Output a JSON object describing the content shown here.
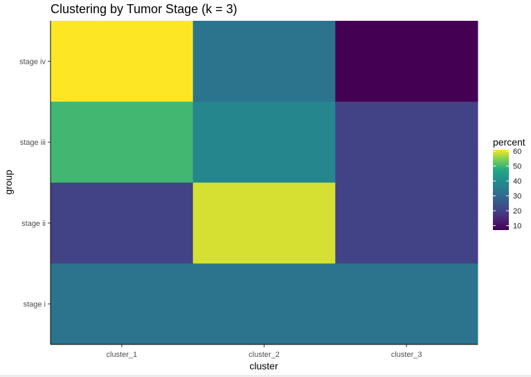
{
  "chart_data": {
    "type": "heatmap",
    "title": "Clustering by Tumor Stage (k = 3)",
    "xlabel": "cluster",
    "ylabel": "group",
    "x_categories": [
      "cluster_1",
      "cluster_2",
      "cluster_3"
    ],
    "y_categories": [
      "stage iv",
      "stage iii",
      "stage ii",
      "stage i"
    ],
    "values": [
      [
        61,
        33,
        7
      ],
      [
        50,
        38,
        20
      ],
      [
        20,
        59,
        20
      ],
      [
        33,
        33,
        33
      ]
    ],
    "color_scale": {
      "name": "viridis",
      "title": "percent",
      "range": [
        7,
        61
      ],
      "ticks": [
        10,
        20,
        30,
        40,
        50,
        60
      ]
    },
    "legend_position": "right",
    "grid": false
  }
}
